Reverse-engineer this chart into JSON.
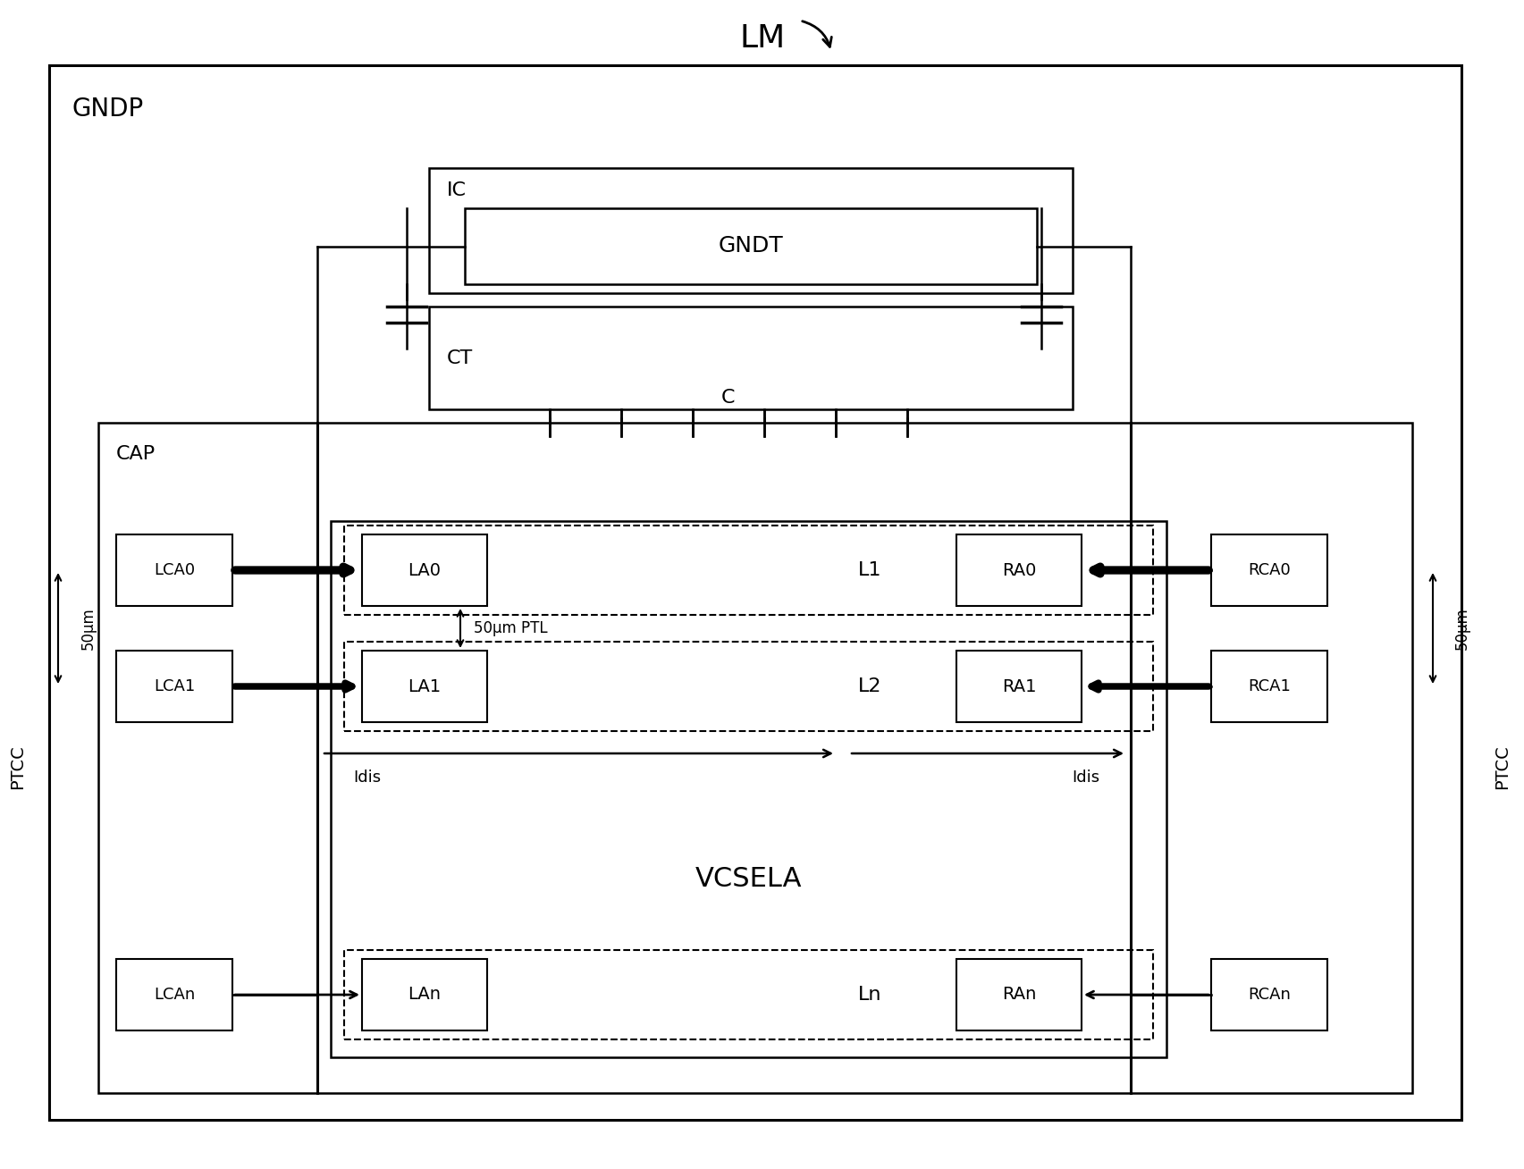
{
  "fig_width": 17.06,
  "fig_height": 13.08,
  "bg_color": "#ffffff",
  "line_color": "#000000",
  "title_text": "LM",
  "gndp_label": "GNDP",
  "cap_label": "CAP",
  "ptcc_label": "PTCC",
  "ic_label": "IC",
  "gndt_label": "GNDT",
  "ct_label": "CT",
  "c_label": "C",
  "vcsela_label": "VCSELA",
  "l1_label": "L1",
  "l2_label": "L2",
  "ln_label": "Ln",
  "lca0_label": "LCA0",
  "lca1_label": "LCA1",
  "lcan_label": "LCAn",
  "la0_label": "LA0",
  "la1_label": "LA1",
  "lan_label": "LAn",
  "rca0_label": "RCA0",
  "rca1_label": "RCA1",
  "rcan_label": "RCAn",
  "ra0_label": "RA0",
  "ra1_label": "RA1",
  "ran_label": "RAn",
  "idis_label": "Idis",
  "ptl_label": "50μm PTL",
  "dim_label": "50μm"
}
